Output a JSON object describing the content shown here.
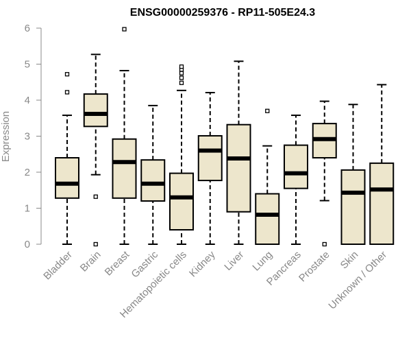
{
  "chart_data": {
    "type": "boxplot",
    "title": "ENSG00000259376 - RP11-505E24.3",
    "ylabel": "Expression",
    "xlabel": "",
    "ylim": [
      0,
      6
    ],
    "yticks": [
      "0",
      "1",
      "2",
      "3",
      "4",
      "5",
      "6"
    ],
    "box_color": "#ede6cc",
    "categories": [
      "Bladder",
      "Brain",
      "Breast",
      "Gastric",
      "Hematopoietic cells",
      "Kidney",
      "Liver",
      "Lung",
      "Pancreas",
      "Prostate",
      "Skin",
      "Unknown / Other"
    ],
    "boxes": [
      {
        "whisker_low": 0.0,
        "q1": 1.28,
        "median": 1.68,
        "q3": 2.4,
        "whisker_high": 3.58,
        "outliers": [
          4.22,
          4.72
        ]
      },
      {
        "whisker_low": 1.93,
        "q1": 3.27,
        "median": 3.62,
        "q3": 4.17,
        "whisker_high": 5.27,
        "outliers": [
          1.32,
          0.0
        ]
      },
      {
        "whisker_low": 0.0,
        "q1": 1.28,
        "median": 2.28,
        "q3": 2.92,
        "whisker_high": 4.82,
        "outliers": [
          5.97
        ]
      },
      {
        "whisker_low": 0.0,
        "q1": 1.2,
        "median": 1.68,
        "q3": 2.34,
        "whisker_high": 3.85,
        "outliers": []
      },
      {
        "whisker_low": 0.0,
        "q1": 0.4,
        "median": 1.3,
        "q3": 1.97,
        "whisker_high": 4.27,
        "outliers": [
          4.48,
          4.62,
          4.75,
          4.85,
          4.93
        ]
      },
      {
        "whisker_low": 0.0,
        "q1": 1.77,
        "median": 2.6,
        "q3": 3.01,
        "whisker_high": 4.21,
        "outliers": []
      },
      {
        "whisker_low": 0.0,
        "q1": 0.9,
        "median": 2.38,
        "q3": 3.32,
        "whisker_high": 5.08,
        "outliers": []
      },
      {
        "whisker_low": 0.0,
        "q1": 0.0,
        "median": 0.82,
        "q3": 1.4,
        "whisker_high": 2.73,
        "outliers": [
          3.7
        ]
      },
      {
        "whisker_low": 0.0,
        "q1": 1.55,
        "median": 1.97,
        "q3": 2.75,
        "whisker_high": 3.58,
        "outliers": []
      },
      {
        "whisker_low": 1.21,
        "q1": 2.4,
        "median": 2.92,
        "q3": 3.35,
        "whisker_high": 3.97,
        "outliers": [
          0.0
        ]
      },
      {
        "whisker_low": 0.0,
        "q1": 0.0,
        "median": 1.43,
        "q3": 2.06,
        "whisker_high": 3.88,
        "outliers": []
      },
      {
        "whisker_low": 0.0,
        "q1": 0.0,
        "median": 1.52,
        "q3": 2.25,
        "whisker_high": 4.43,
        "outliers": []
      }
    ]
  }
}
